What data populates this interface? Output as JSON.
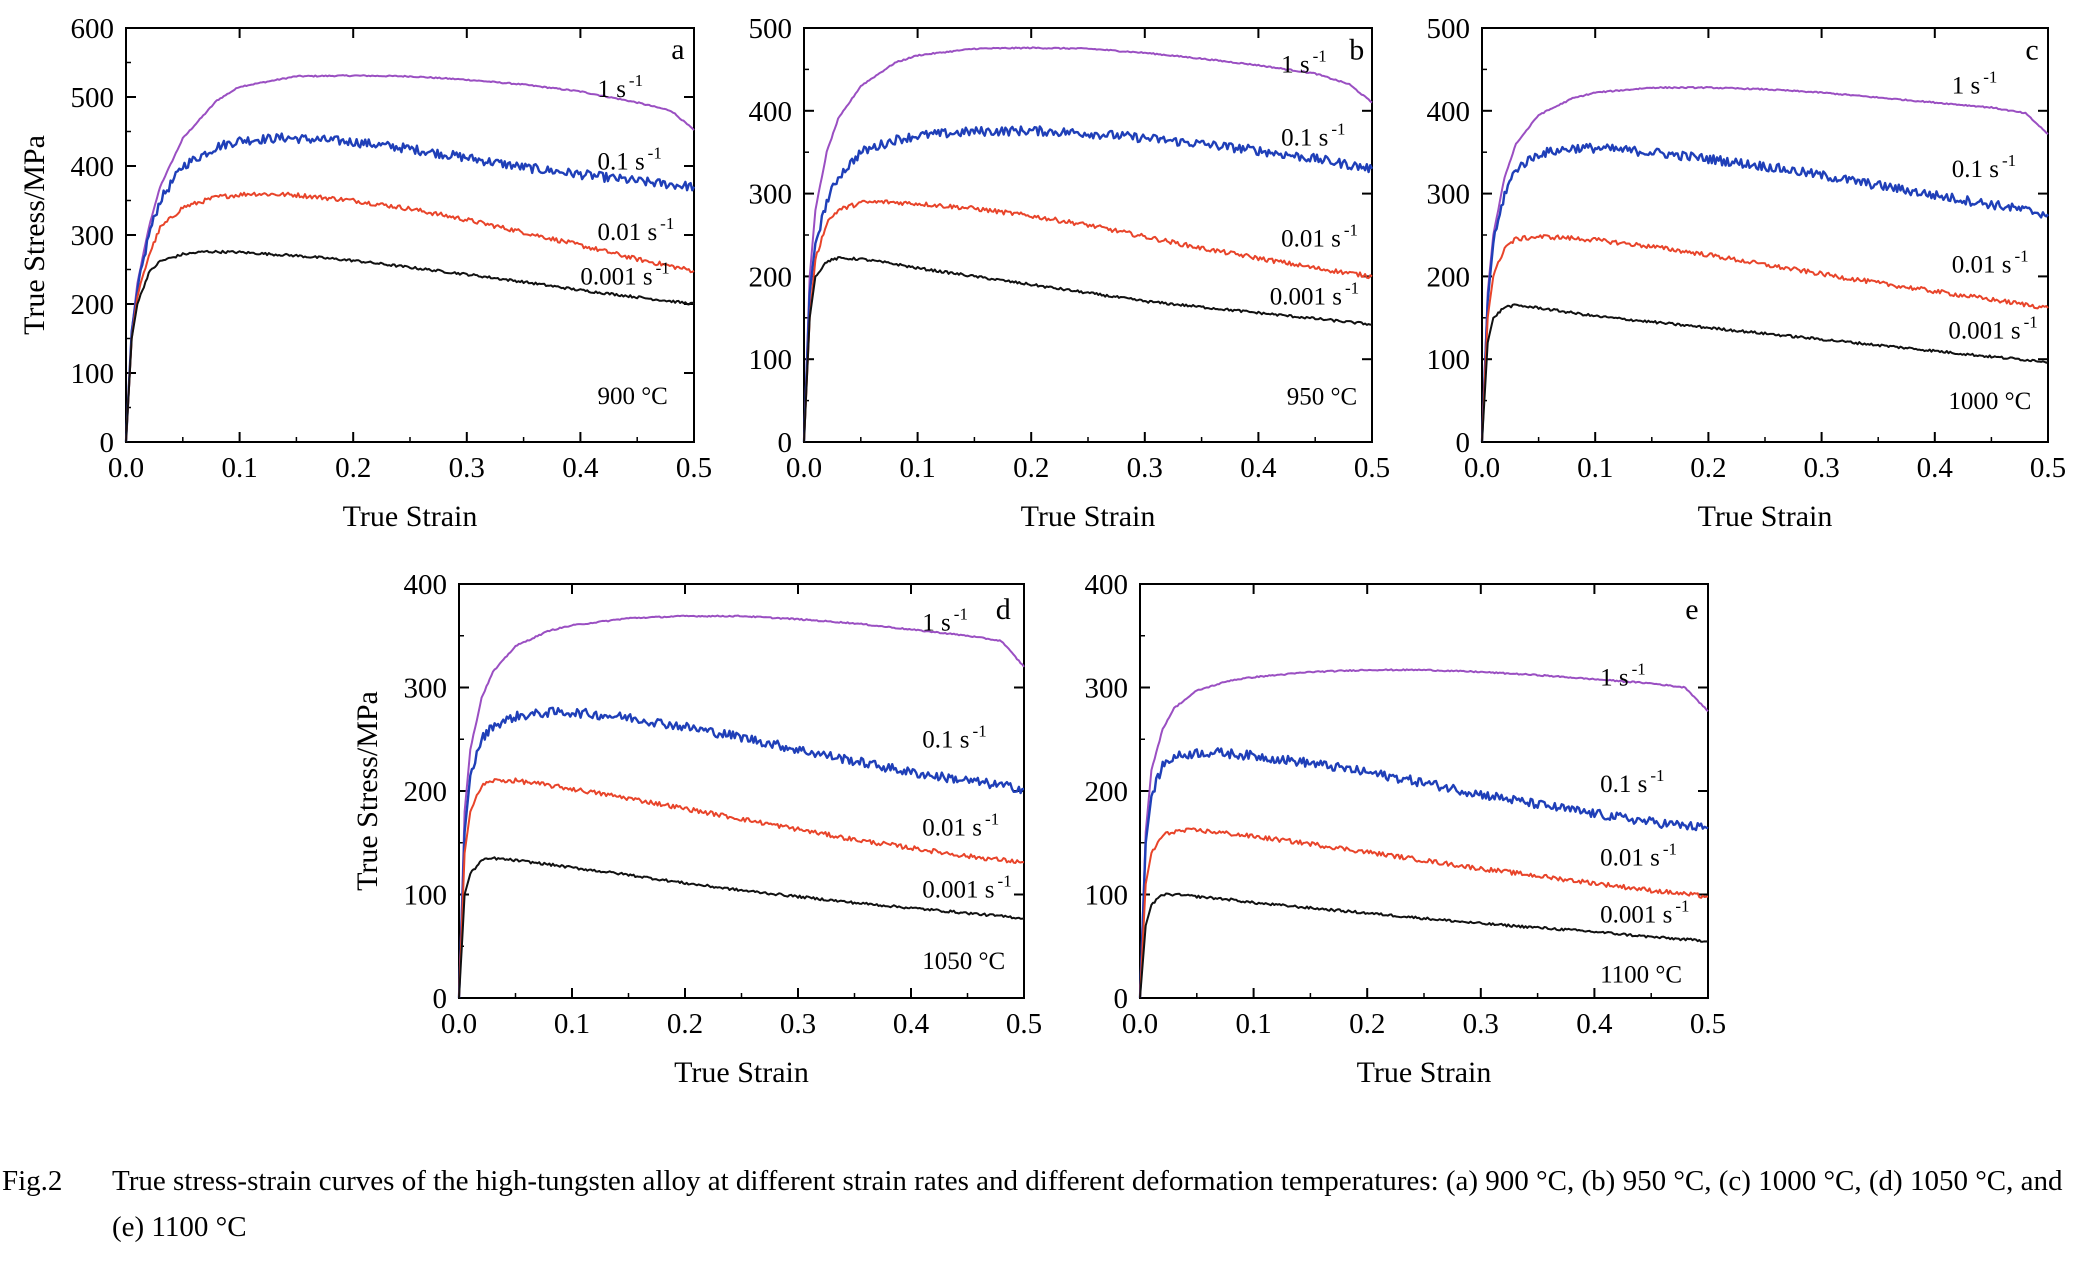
{
  "figure": {
    "caption_tag": "Fig.2",
    "caption_text": "True stress-strain curves of the high-tungsten alloy at different strain rates and different deformation temperatures: (a) 900 °C, (b) 950 °C, (c) 1000 °C, (d) 1050 °C, and (e) 1100 °C"
  },
  "colors": {
    "1": "#9a4fc2",
    "0.1": "#1f3fb8",
    "0.01": "#e8442a",
    "0.001": "#111111"
  },
  "chart_data": [
    {
      "type": "line",
      "panel": "a",
      "temperature": "900 °C",
      "xlabel": "True Strain",
      "ylabel": "True Stress/MPa",
      "xlim": [
        0,
        0.5
      ],
      "ylim": [
        0,
        600
      ],
      "xticks": [
        "0.0",
        "0.1",
        "0.2",
        "0.3",
        "0.4",
        "0.5"
      ],
      "yticks": [
        "0",
        "100",
        "200",
        "300",
        "400",
        "500",
        "600"
      ],
      "series": [
        {
          "name": "1 s⁻¹",
          "rate": "1",
          "x": [
            0,
            0.005,
            0.01,
            0.02,
            0.03,
            0.05,
            0.08,
            0.1,
            0.15,
            0.2,
            0.25,
            0.3,
            0.35,
            0.4,
            0.45,
            0.48,
            0.5
          ],
          "y": [
            0,
            160,
            230,
            310,
            370,
            440,
            495,
            515,
            530,
            531,
            530,
            525,
            518,
            508,
            492,
            480,
            452
          ]
        },
        {
          "name": "0.1 s⁻¹",
          "rate": "0.1",
          "x": [
            0,
            0.005,
            0.01,
            0.02,
            0.03,
            0.05,
            0.08,
            0.1,
            0.14,
            0.2,
            0.25,
            0.3,
            0.35,
            0.4,
            0.45,
            0.5
          ],
          "y": [
            0,
            160,
            220,
            300,
            350,
            400,
            428,
            437,
            441,
            435,
            425,
            412,
            398,
            388,
            378,
            370
          ]
        },
        {
          "name": "0.01 s⁻¹",
          "rate": "0.01",
          "x": [
            0,
            0.005,
            0.01,
            0.02,
            0.03,
            0.05,
            0.08,
            0.11,
            0.15,
            0.2,
            0.25,
            0.3,
            0.35,
            0.4,
            0.45,
            0.5
          ],
          "y": [
            0,
            150,
            210,
            270,
            310,
            340,
            355,
            360,
            358,
            350,
            338,
            322,
            304,
            285,
            265,
            248
          ]
        },
        {
          "name": "0.001 s⁻¹",
          "rate": "0.001",
          "x": [
            0,
            0.005,
            0.01,
            0.02,
            0.03,
            0.05,
            0.07,
            0.1,
            0.15,
            0.2,
            0.25,
            0.3,
            0.35,
            0.4,
            0.45,
            0.5
          ],
          "y": [
            0,
            150,
            200,
            245,
            262,
            272,
            276,
            275,
            270,
            263,
            253,
            243,
            232,
            220,
            210,
            200
          ]
        }
      ],
      "annotations": [
        {
          "text": "1 s",
          "sup": "-1",
          "x": 0.415,
          "y": 500
        },
        {
          "text": "0.1 s",
          "sup": "-1",
          "x": 0.415,
          "y": 395
        },
        {
          "text": "0.01 s",
          "sup": "-1",
          "x": 0.415,
          "y": 293
        },
        {
          "text": "0.001 s",
          "sup": "-1",
          "x": 0.4,
          "y": 228
        },
        {
          "text": "900 °C",
          "x": 0.415,
          "y": 55
        },
        {
          "text": "a",
          "x": 0.48,
          "y": 555
        }
      ]
    },
    {
      "type": "line",
      "panel": "b",
      "temperature": "950 °C",
      "xlabel": "True Strain",
      "ylabel": "",
      "xlim": [
        0,
        0.5
      ],
      "ylim": [
        0,
        500
      ],
      "xticks": [
        "0.0",
        "0.1",
        "0.2",
        "0.3",
        "0.4",
        "0.5"
      ],
      "yticks": [
        "0",
        "100",
        "200",
        "300",
        "400",
        "500"
      ],
      "series": [
        {
          "name": "1 s⁻¹",
          "rate": "1",
          "x": [
            0,
            0.005,
            0.01,
            0.02,
            0.03,
            0.05,
            0.08,
            0.1,
            0.15,
            0.2,
            0.25,
            0.3,
            0.35,
            0.4,
            0.45,
            0.48,
            0.5
          ],
          "y": [
            0,
            200,
            280,
            350,
            390,
            430,
            458,
            467,
            475,
            476,
            475,
            470,
            463,
            455,
            445,
            432,
            410
          ]
        },
        {
          "name": "0.1 s⁻¹",
          "rate": "0.1",
          "x": [
            0,
            0.005,
            0.01,
            0.02,
            0.03,
            0.05,
            0.08,
            0.1,
            0.15,
            0.2,
            0.25,
            0.3,
            0.35,
            0.4,
            0.45,
            0.5
          ],
          "y": [
            0,
            180,
            240,
            290,
            320,
            350,
            365,
            370,
            375,
            376,
            373,
            367,
            360,
            352,
            342,
            330
          ]
        },
        {
          "name": "0.01 s⁻¹",
          "rate": "0.01",
          "x": [
            0,
            0.005,
            0.01,
            0.02,
            0.03,
            0.05,
            0.07,
            0.1,
            0.15,
            0.2,
            0.25,
            0.3,
            0.35,
            0.4,
            0.45,
            0.5
          ],
          "y": [
            0,
            150,
            220,
            265,
            280,
            289,
            290,
            288,
            282,
            273,
            262,
            248,
            234,
            222,
            210,
            200
          ]
        },
        {
          "name": "0.001 s⁻¹",
          "rate": "0.001",
          "x": [
            0,
            0.005,
            0.01,
            0.02,
            0.03,
            0.05,
            0.08,
            0.1,
            0.15,
            0.2,
            0.25,
            0.3,
            0.35,
            0.4,
            0.45,
            0.5
          ],
          "y": [
            0,
            150,
            200,
            218,
            222,
            221,
            215,
            210,
            200,
            190,
            180,
            170,
            163,
            156,
            149,
            142
          ]
        }
      ],
      "annotations": [
        {
          "text": "1 s",
          "sup": "-1",
          "x": 0.42,
          "y": 446
        },
        {
          "text": "0.1 s",
          "sup": "-1",
          "x": 0.42,
          "y": 358
        },
        {
          "text": "0.01 s",
          "sup": "-1",
          "x": 0.42,
          "y": 236
        },
        {
          "text": "0.001 s",
          "sup": "-1",
          "x": 0.41,
          "y": 166
        },
        {
          "text": "950 °C",
          "x": 0.425,
          "y": 45
        },
        {
          "text": "b",
          "x": 0.48,
          "y": 462
        }
      ]
    },
    {
      "type": "line",
      "panel": "c",
      "temperature": "1000 °C",
      "xlabel": "True Strain",
      "ylabel": "",
      "xlim": [
        0,
        0.5
      ],
      "ylim": [
        0,
        500
      ],
      "xticks": [
        "0.0",
        "0.1",
        "0.2",
        "0.3",
        "0.4",
        "0.5"
      ],
      "yticks": [
        "0",
        "100",
        "200",
        "300",
        "400",
        "500"
      ],
      "series": [
        {
          "name": "1 s⁻¹",
          "rate": "1",
          "x": [
            0,
            0.005,
            0.01,
            0.02,
            0.03,
            0.05,
            0.08,
            0.1,
            0.15,
            0.2,
            0.25,
            0.3,
            0.35,
            0.4,
            0.45,
            0.48,
            0.5
          ],
          "y": [
            0,
            180,
            250,
            320,
            360,
            395,
            415,
            422,
            428,
            428,
            426,
            422,
            416,
            410,
            404,
            397,
            372
          ]
        },
        {
          "name": "0.1 s⁻¹",
          "rate": "0.1",
          "x": [
            0,
            0.005,
            0.01,
            0.02,
            0.03,
            0.05,
            0.08,
            0.1,
            0.15,
            0.2,
            0.25,
            0.3,
            0.35,
            0.4,
            0.45,
            0.5
          ],
          "y": [
            0,
            170,
            240,
            300,
            330,
            348,
            355,
            355,
            350,
            342,
            333,
            322,
            310,
            298,
            287,
            275
          ]
        },
        {
          "name": "0.01 s⁻¹",
          "rate": "0.01",
          "x": [
            0,
            0.005,
            0.01,
            0.02,
            0.03,
            0.05,
            0.07,
            0.1,
            0.15,
            0.2,
            0.25,
            0.3,
            0.35,
            0.4,
            0.45,
            0.5
          ],
          "y": [
            0,
            150,
            200,
            235,
            245,
            248,
            247,
            244,
            236,
            226,
            214,
            203,
            192,
            182,
            172,
            162
          ]
        },
        {
          "name": "0.001 s⁻¹",
          "rate": "0.001",
          "x": [
            0,
            0.005,
            0.01,
            0.02,
            0.03,
            0.05,
            0.08,
            0.1,
            0.15,
            0.2,
            0.25,
            0.3,
            0.35,
            0.4,
            0.45,
            0.5
          ],
          "y": [
            0,
            120,
            150,
            163,
            165,
            162,
            156,
            152,
            145,
            138,
            131,
            124,
            117,
            110,
            103,
            97
          ]
        }
      ],
      "annotations": [
        {
          "text": "1 s",
          "sup": "-1",
          "x": 0.415,
          "y": 421
        },
        {
          "text": "0.1 s",
          "sup": "-1",
          "x": 0.415,
          "y": 320
        },
        {
          "text": "0.01 s",
          "sup": "-1",
          "x": 0.415,
          "y": 205
        },
        {
          "text": "0.001 s",
          "sup": "-1",
          "x": 0.412,
          "y": 125
        },
        {
          "text": "1000 °C",
          "x": 0.412,
          "y": 40
        },
        {
          "text": "c",
          "x": 0.48,
          "y": 462
        }
      ]
    },
    {
      "type": "line",
      "panel": "d",
      "temperature": "1050 °C",
      "xlabel": "True Strain",
      "ylabel": "True Stress/MPa",
      "xlim": [
        0,
        0.5
      ],
      "ylim": [
        0,
        400
      ],
      "xticks": [
        "0.0",
        "0.1",
        "0.2",
        "0.3",
        "0.4",
        "0.5"
      ],
      "yticks": [
        "0",
        "100",
        "200",
        "300",
        "400"
      ],
      "series": [
        {
          "name": "1 s⁻¹",
          "rate": "1",
          "x": [
            0,
            0.005,
            0.01,
            0.02,
            0.03,
            0.05,
            0.08,
            0.1,
            0.15,
            0.2,
            0.25,
            0.3,
            0.35,
            0.4,
            0.45,
            0.48,
            0.5
          ],
          "y": [
            0,
            180,
            240,
            290,
            315,
            340,
            355,
            360,
            367,
            369,
            369,
            366,
            362,
            356,
            350,
            345,
            320
          ]
        },
        {
          "name": "0.1 s⁻¹",
          "rate": "0.1",
          "x": [
            0,
            0.005,
            0.01,
            0.02,
            0.03,
            0.05,
            0.08,
            0.1,
            0.15,
            0.2,
            0.25,
            0.3,
            0.35,
            0.4,
            0.45,
            0.5
          ],
          "y": [
            0,
            160,
            215,
            250,
            263,
            272,
            276,
            276,
            271,
            262,
            252,
            240,
            229,
            218,
            210,
            202
          ]
        },
        {
          "name": "0.01 s⁻¹",
          "rate": "0.01",
          "x": [
            0,
            0.005,
            0.01,
            0.02,
            0.03,
            0.05,
            0.07,
            0.1,
            0.15,
            0.2,
            0.25,
            0.3,
            0.35,
            0.4,
            0.45,
            0.5
          ],
          "y": [
            0,
            140,
            180,
            205,
            210,
            210,
            207,
            202,
            193,
            183,
            173,
            163,
            153,
            145,
            137,
            131
          ]
        },
        {
          "name": "0.001 s⁻¹",
          "rate": "0.001",
          "x": [
            0,
            0.005,
            0.01,
            0.02,
            0.03,
            0.05,
            0.08,
            0.1,
            0.15,
            0.2,
            0.25,
            0.3,
            0.35,
            0.4,
            0.45,
            0.5
          ],
          "y": [
            0,
            100,
            120,
            133,
            135,
            133,
            129,
            126,
            119,
            111,
            104,
            98,
            92,
            87,
            82,
            77
          ]
        }
      ],
      "annotations": [
        {
          "text": "1 s",
          "sup": "-1",
          "x": 0.41,
          "y": 355
        },
        {
          "text": "0.1 s",
          "sup": "-1",
          "x": 0.41,
          "y": 242
        },
        {
          "text": "0.01 s",
          "sup": "-1",
          "x": 0.41,
          "y": 157
        },
        {
          "text": "0.001 s",
          "sup": "-1",
          "x": 0.41,
          "y": 97
        },
        {
          "text": "1050 °C",
          "x": 0.41,
          "y": 28
        },
        {
          "text": "d",
          "x": 0.475,
          "y": 366
        }
      ]
    },
    {
      "type": "line",
      "panel": "e",
      "temperature": "1100 °C",
      "xlabel": "True Strain",
      "ylabel": "",
      "xlim": [
        0,
        0.5
      ],
      "ylim": [
        0,
        400
      ],
      "xticks": [
        "0.0",
        "0.1",
        "0.2",
        "0.3",
        "0.4",
        "0.5"
      ],
      "yticks": [
        "0",
        "100",
        "200",
        "300",
        "400"
      ],
      "series": [
        {
          "name": "1 s⁻¹",
          "rate": "1",
          "x": [
            0,
            0.005,
            0.01,
            0.02,
            0.03,
            0.05,
            0.08,
            0.1,
            0.15,
            0.2,
            0.25,
            0.3,
            0.35,
            0.4,
            0.45,
            0.48,
            0.5
          ],
          "y": [
            0,
            160,
            220,
            260,
            280,
            297,
            307,
            310,
            315,
            317,
            317,
            315,
            312,
            308,
            304,
            300,
            277
          ]
        },
        {
          "name": "0.1 s⁻¹",
          "rate": "0.1",
          "x": [
            0,
            0.005,
            0.01,
            0.02,
            0.03,
            0.05,
            0.07,
            0.1,
            0.15,
            0.2,
            0.25,
            0.3,
            0.35,
            0.4,
            0.45,
            0.5
          ],
          "y": [
            0,
            150,
            195,
            225,
            233,
            237,
            237,
            234,
            227,
            218,
            208,
            197,
            187,
            178,
            170,
            164
          ]
        },
        {
          "name": "0.01 s⁻¹",
          "rate": "0.01",
          "x": [
            0,
            0.005,
            0.01,
            0.02,
            0.03,
            0.05,
            0.07,
            0.1,
            0.15,
            0.2,
            0.25,
            0.3,
            0.35,
            0.4,
            0.45,
            0.5
          ],
          "y": [
            0,
            110,
            140,
            157,
            161,
            162,
            160,
            156,
            149,
            141,
            133,
            125,
            118,
            111,
            104,
            98
          ]
        },
        {
          "name": "0.001 s⁻¹",
          "rate": "0.001",
          "x": [
            0,
            0.005,
            0.01,
            0.02,
            0.03,
            0.05,
            0.08,
            0.1,
            0.15,
            0.2,
            0.25,
            0.3,
            0.35,
            0.4,
            0.45,
            0.5
          ],
          "y": [
            0,
            70,
            90,
            100,
            100,
            98,
            95,
            92,
            87,
            82,
            77,
            72,
            68,
            64,
            59,
            55
          ]
        }
      ],
      "annotations": [
        {
          "text": "1 s",
          "sup": "-1",
          "x": 0.405,
          "y": 302
        },
        {
          "text": "0.1 s",
          "sup": "-1",
          "x": 0.405,
          "y": 199
        },
        {
          "text": "0.01 s",
          "sup": "-1",
          "x": 0.405,
          "y": 128
        },
        {
          "text": "0.001 s",
          "sup": "-1",
          "x": 0.405,
          "y": 73
        },
        {
          "text": "1100 °C",
          "x": 0.405,
          "y": 15
        },
        {
          "text": "e",
          "x": 0.48,
          "y": 366
        }
      ]
    }
  ]
}
